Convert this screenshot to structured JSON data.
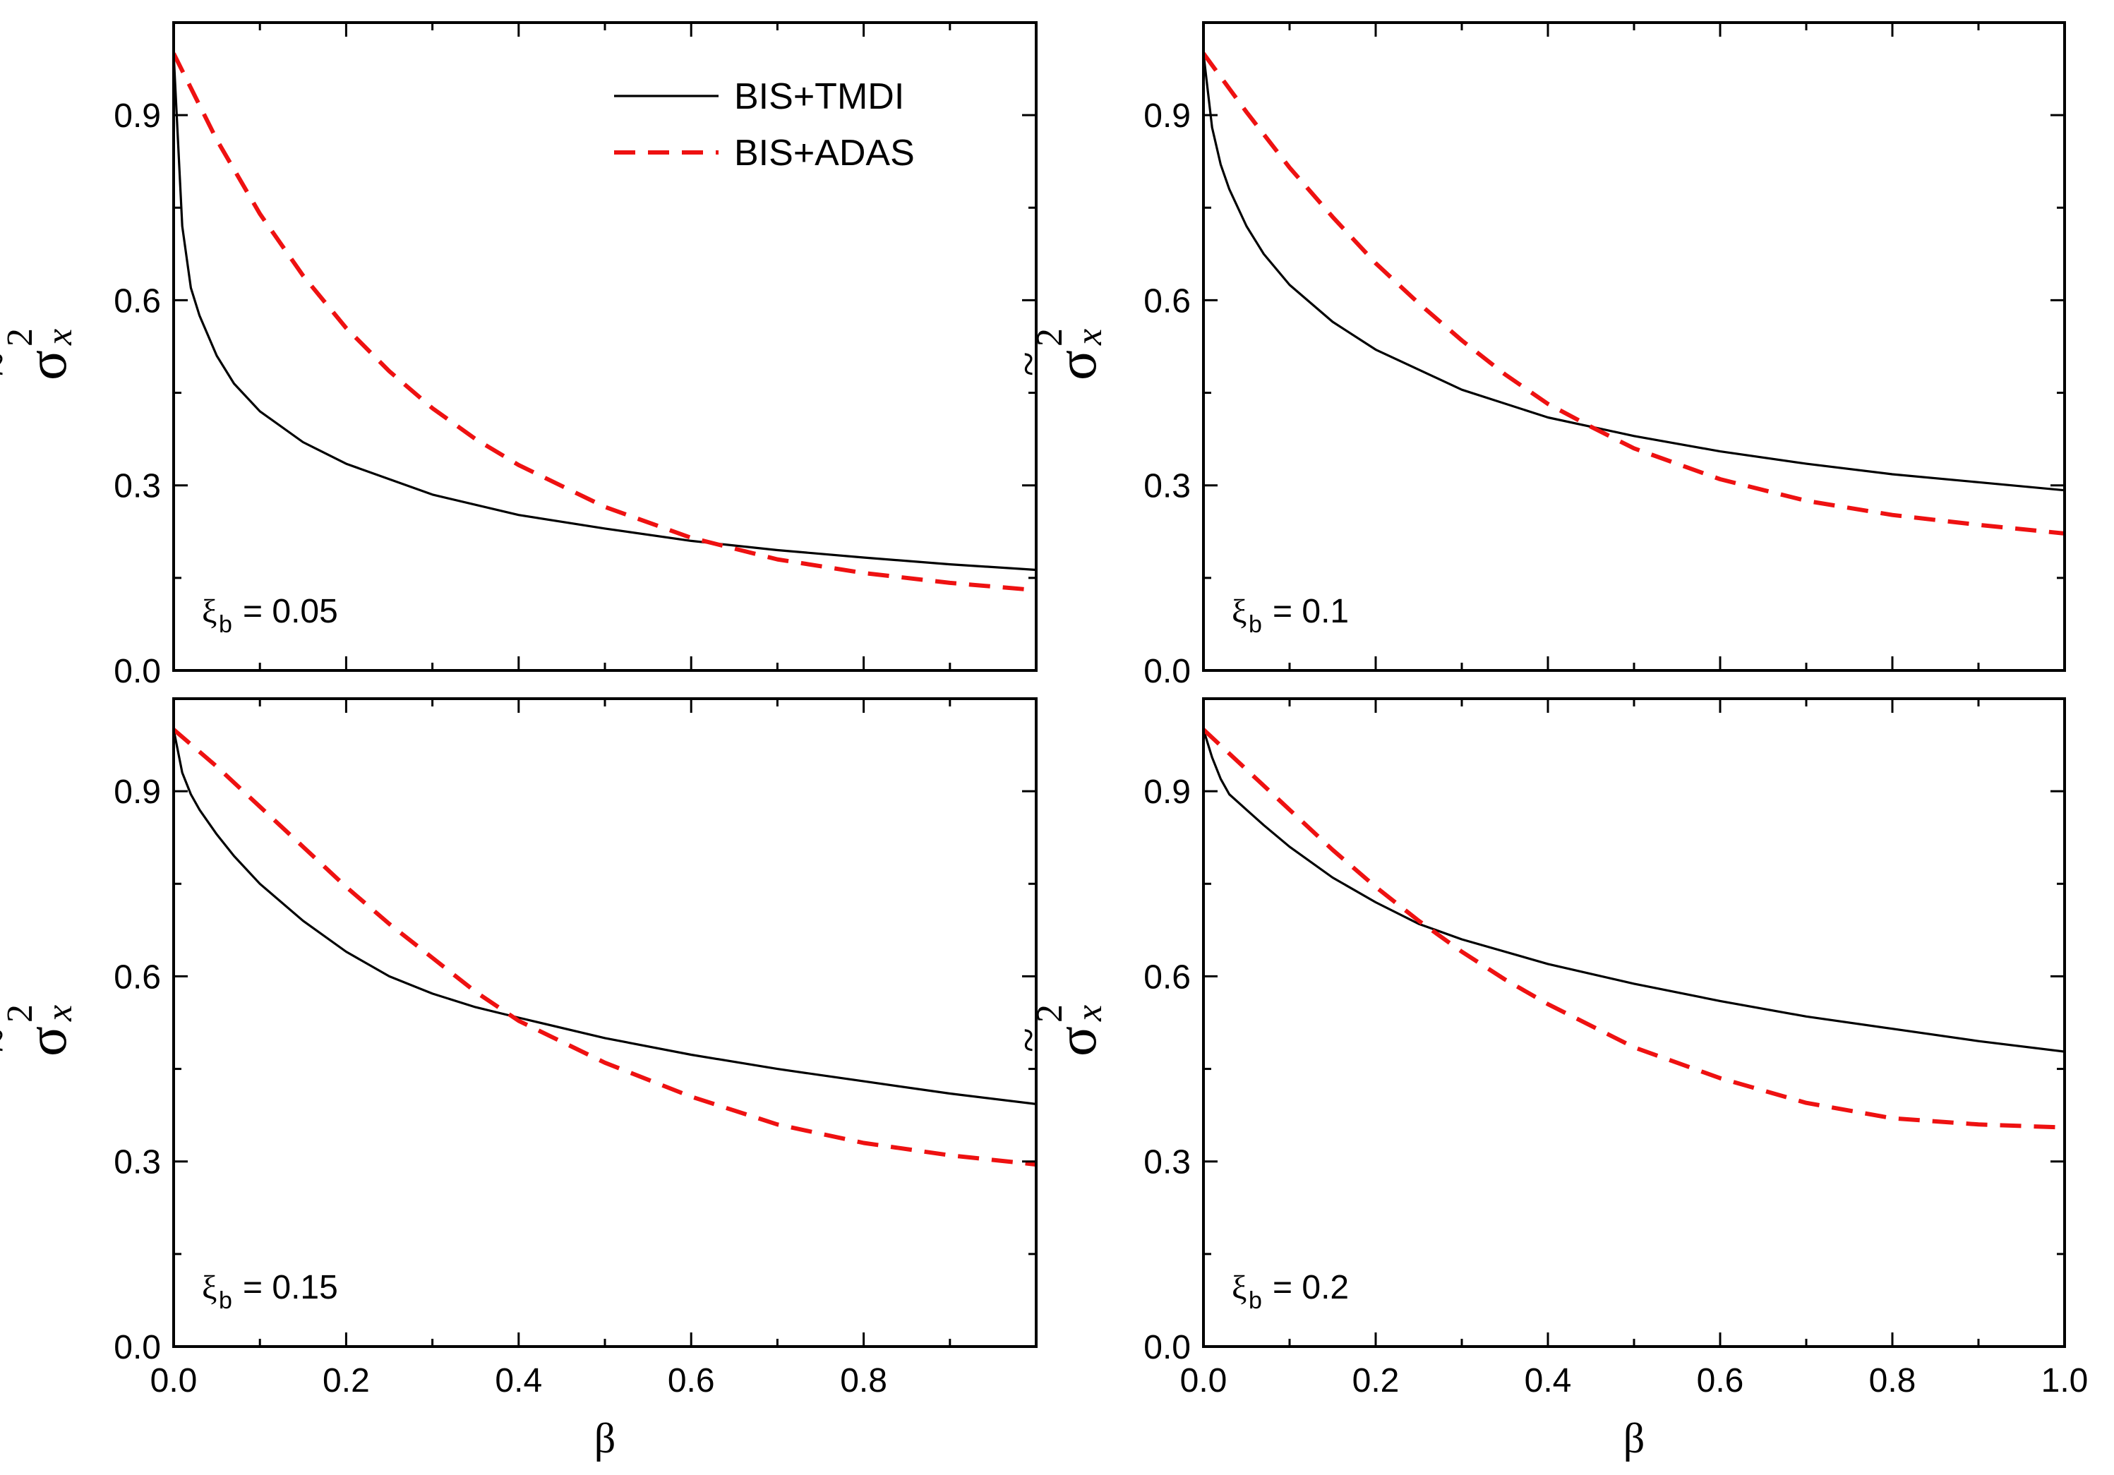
{
  "chart_data": [
    {
      "type": "line",
      "annotation": {
        "symbol": "ξ",
        "sub": "b",
        "text": "= 0.05"
      },
      "xlabel": "",
      "ylabel": {
        "tilde": "~",
        "symbol": "σ",
        "sup": "2",
        "sub": "x"
      },
      "xlim": [
        0,
        1
      ],
      "ylim": [
        0,
        1.05
      ],
      "xticks": [],
      "yticks": [
        "0.0",
        "0.3",
        "0.6",
        "0.9"
      ],
      "series": [
        {
          "name": "BIS+TMDI",
          "style": "solid",
          "color": "#000000",
          "x": [
            0,
            0.005,
            0.01,
            0.02,
            0.03,
            0.05,
            0.07,
            0.1,
            0.15,
            0.2,
            0.3,
            0.4,
            0.5,
            0.6,
            0.7,
            0.8,
            0.9,
            1.0
          ],
          "y": [
            1.0,
            0.86,
            0.72,
            0.62,
            0.575,
            0.51,
            0.465,
            0.42,
            0.37,
            0.335,
            0.285,
            0.252,
            0.23,
            0.21,
            0.195,
            0.183,
            0.172,
            0.163
          ]
        },
        {
          "name": "BIS+ADAS",
          "style": "dashed",
          "color": "#ee1111",
          "x": [
            0,
            0.05,
            0.1,
            0.15,
            0.2,
            0.25,
            0.3,
            0.35,
            0.4,
            0.5,
            0.6,
            0.7,
            0.8,
            0.9,
            1.0
          ],
          "y": [
            1.0,
            0.86,
            0.74,
            0.64,
            0.555,
            0.485,
            0.425,
            0.375,
            0.333,
            0.265,
            0.215,
            0.18,
            0.158,
            0.142,
            0.13
          ]
        }
      ]
    },
    {
      "type": "line",
      "annotation": {
        "symbol": "ξ",
        "sub": "b",
        "text": "= 0.1"
      },
      "xlabel": "",
      "ylabel": {
        "tilde": "~",
        "symbol": "σ",
        "sup": "2",
        "sub": "x"
      },
      "xlim": [
        0,
        1
      ],
      "ylim": [
        0,
        1.05
      ],
      "xticks": [],
      "yticks": [
        "0.0",
        "0.3",
        "0.6",
        "0.9"
      ],
      "series": [
        {
          "name": "BIS+TMDI",
          "style": "solid",
          "color": "#000000",
          "x": [
            0,
            0.01,
            0.02,
            0.03,
            0.05,
            0.07,
            0.1,
            0.15,
            0.2,
            0.3,
            0.4,
            0.5,
            0.6,
            0.7,
            0.8,
            0.9,
            1.0
          ],
          "y": [
            1.0,
            0.88,
            0.82,
            0.78,
            0.72,
            0.675,
            0.625,
            0.565,
            0.52,
            0.455,
            0.41,
            0.38,
            0.355,
            0.335,
            0.318,
            0.305,
            0.292
          ]
        },
        {
          "name": "BIS+ADAS",
          "style": "dashed",
          "color": "#ee1111",
          "x": [
            0,
            0.05,
            0.1,
            0.15,
            0.2,
            0.25,
            0.3,
            0.35,
            0.4,
            0.45,
            0.5,
            0.6,
            0.7,
            0.8,
            0.9,
            1.0
          ],
          "y": [
            1.0,
            0.905,
            0.815,
            0.735,
            0.66,
            0.595,
            0.535,
            0.48,
            0.432,
            0.395,
            0.36,
            0.31,
            0.275,
            0.252,
            0.236,
            0.222
          ]
        }
      ]
    },
    {
      "type": "line",
      "annotation": {
        "symbol": "ξ",
        "sub": "b",
        "text": "= 0.15"
      },
      "xlabel": "β",
      "ylabel": {
        "tilde": "~",
        "symbol": "σ",
        "sup": "2",
        "sub": "x"
      },
      "xlim": [
        0,
        1
      ],
      "ylim": [
        0,
        1.05
      ],
      "xticks": [
        "0.0",
        "0.2",
        "0.4",
        "0.6",
        "0.8"
      ],
      "yticks": [
        "0.0",
        "0.3",
        "0.6",
        "0.9"
      ],
      "series": [
        {
          "name": "BIS+TMDI",
          "style": "solid",
          "color": "#000000",
          "x": [
            0,
            0.01,
            0.02,
            0.03,
            0.05,
            0.07,
            0.1,
            0.15,
            0.2,
            0.25,
            0.3,
            0.35,
            0.4,
            0.5,
            0.6,
            0.7,
            0.8,
            0.9,
            1.0
          ],
          "y": [
            1.0,
            0.93,
            0.895,
            0.87,
            0.83,
            0.795,
            0.75,
            0.69,
            0.64,
            0.6,
            0.572,
            0.55,
            0.533,
            0.5,
            0.473,
            0.45,
            0.43,
            0.41,
            0.393
          ]
        },
        {
          "name": "BIS+ADAS",
          "style": "dashed",
          "color": "#ee1111",
          "x": [
            0,
            0.05,
            0.1,
            0.15,
            0.2,
            0.25,
            0.3,
            0.35,
            0.4,
            0.5,
            0.6,
            0.7,
            0.8,
            0.9,
            1.0
          ],
          "y": [
            1.0,
            0.94,
            0.875,
            0.81,
            0.745,
            0.685,
            0.63,
            0.575,
            0.528,
            0.46,
            0.405,
            0.36,
            0.33,
            0.31,
            0.295
          ]
        }
      ]
    },
    {
      "type": "line",
      "annotation": {
        "symbol": "ξ",
        "sub": "b",
        "text": "= 0.2"
      },
      "xlabel": "β",
      "ylabel": {
        "tilde": "~",
        "symbol": "σ",
        "sup": "2",
        "sub": "x"
      },
      "xlim": [
        0,
        1
      ],
      "ylim": [
        0,
        1.05
      ],
      "xticks": [
        "0.0",
        "0.2",
        "0.4",
        "0.6",
        "0.8",
        "1.0"
      ],
      "yticks": [
        "0.0",
        "0.3",
        "0.6",
        "0.9"
      ],
      "series": [
        {
          "name": "BIS+TMDI",
          "style": "solid",
          "color": "#000000",
          "x": [
            0,
            0.01,
            0.02,
            0.03,
            0.05,
            0.07,
            0.1,
            0.15,
            0.2,
            0.25,
            0.3,
            0.4,
            0.5,
            0.6,
            0.7,
            0.8,
            0.9,
            1.0
          ],
          "y": [
            1.0,
            0.955,
            0.92,
            0.895,
            0.87,
            0.845,
            0.81,
            0.76,
            0.72,
            0.685,
            0.66,
            0.62,
            0.588,
            0.56,
            0.535,
            0.515,
            0.495,
            0.478
          ]
        },
        {
          "name": "BIS+ADAS",
          "style": "dashed",
          "color": "#ee1111",
          "x": [
            0,
            0.05,
            0.1,
            0.15,
            0.2,
            0.25,
            0.3,
            0.35,
            0.4,
            0.5,
            0.6,
            0.7,
            0.8,
            0.9,
            1.0
          ],
          "y": [
            1.0,
            0.935,
            0.87,
            0.805,
            0.745,
            0.69,
            0.64,
            0.595,
            0.555,
            0.485,
            0.435,
            0.395,
            0.37,
            0.36,
            0.355
          ]
        }
      ]
    }
  ],
  "legend": {
    "position": "top-right of first panel",
    "entries": [
      {
        "label": "BIS+TMDI",
        "style": "solid",
        "color": "#000000"
      },
      {
        "label": "BIS+ADAS",
        "style": "dashed",
        "color": "#ee1111"
      }
    ]
  }
}
